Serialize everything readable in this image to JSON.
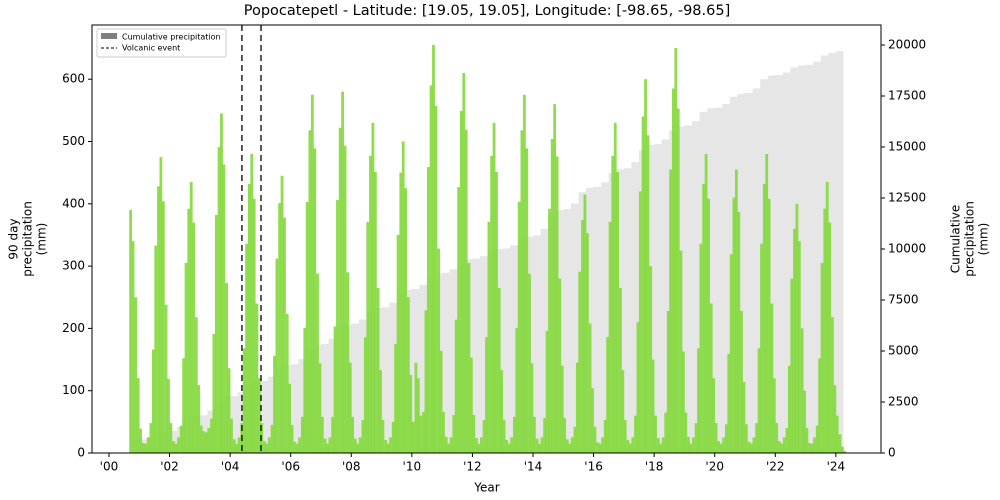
{
  "chart_data": {
    "type": "bar",
    "title": "Popocatepetl - Latitude: [19.05, 19.05], Longitude: [-98.65, -98.65]",
    "xlabel": "Year",
    "ylabel": [
      "90 day",
      "precipitation",
      "(mm)"
    ],
    "y2label": [
      "Cumulative",
      "precipitation",
      "(mm)"
    ],
    "xlim": [
      1999.44,
      2025.49
    ],
    "xticks": [
      {
        "value": 2000,
        "label": "'00"
      },
      {
        "value": 2002,
        "label": "'02"
      },
      {
        "value": 2004,
        "label": "'04"
      },
      {
        "value": 2006,
        "label": "'06"
      },
      {
        "value": 2008,
        "label": "'08"
      },
      {
        "value": 2010,
        "label": "'10"
      },
      {
        "value": 2012,
        "label": "'12"
      },
      {
        "value": 2014,
        "label": "'14"
      },
      {
        "value": 2016,
        "label": "'16"
      },
      {
        "value": 2018,
        "label": "'18"
      },
      {
        "value": 2020,
        "label": "'20"
      },
      {
        "value": 2022,
        "label": "'22"
      },
      {
        "value": 2024,
        "label": "'24"
      }
    ],
    "ylim": [
      0,
      687
    ],
    "yticks": [
      0,
      100,
      200,
      300,
      400,
      500,
      600
    ],
    "y2lim": [
      0,
      20980
    ],
    "y2ticks": [
      0,
      2500,
      5000,
      7500,
      10000,
      12500,
      15000,
      17500,
      20000
    ],
    "legend": "upper left",
    "events": [
      2004.39,
      2005.02
    ],
    "events_label": "Volcanic event",
    "events_color": "#000000",
    "x": [
      2000.71,
      2000.79,
      2000.88,
      2000.96,
      2001.04,
      2001.13,
      2001.21,
      2001.29,
      2001.38,
      2001.46,
      2001.54,
      2001.63,
      2001.71,
      2001.79,
      2001.88,
      2001.96,
      2002.04,
      2002.13,
      2002.21,
      2002.29,
      2002.38,
      2002.46,
      2002.54,
      2002.63,
      2002.71,
      2002.79,
      2002.88,
      2002.96,
      2003.04,
      2003.13,
      2003.21,
      2003.29,
      2003.38,
      2003.46,
      2003.54,
      2003.63,
      2003.71,
      2003.79,
      2003.88,
      2003.96,
      2004.04,
      2004.13,
      2004.21,
      2004.29,
      2004.38,
      2004.46,
      2004.54,
      2004.63,
      2004.71,
      2004.79,
      2004.88,
      2004.96,
      2005.04,
      2005.13,
      2005.21,
      2005.29,
      2005.38,
      2005.46,
      2005.54,
      2005.63,
      2005.71,
      2005.79,
      2005.88,
      2005.96,
      2006.04,
      2006.13,
      2006.21,
      2006.29,
      2006.38,
      2006.46,
      2006.54,
      2006.63,
      2006.71,
      2006.79,
      2006.88,
      2006.96,
      2007.04,
      2007.13,
      2007.21,
      2007.29,
      2007.38,
      2007.46,
      2007.54,
      2007.63,
      2007.71,
      2007.79,
      2007.88,
      2007.96,
      2008.04,
      2008.13,
      2008.21,
      2008.29,
      2008.38,
      2008.46,
      2008.54,
      2008.63,
      2008.71,
      2008.79,
      2008.88,
      2008.96,
      2009.04,
      2009.13,
      2009.21,
      2009.29,
      2009.38,
      2009.46,
      2009.54,
      2009.63,
      2009.71,
      2009.79,
      2009.88,
      2009.96,
      2010.04,
      2010.13,
      2010.21,
      2010.29,
      2010.38,
      2010.46,
      2010.54,
      2010.63,
      2010.71,
      2010.79,
      2010.88,
      2010.96,
      2011.04,
      2011.13,
      2011.21,
      2011.29,
      2011.38,
      2011.46,
      2011.54,
      2011.63,
      2011.71,
      2011.79,
      2011.88,
      2011.96,
      2012.04,
      2012.13,
      2012.21,
      2012.29,
      2012.38,
      2012.46,
      2012.54,
      2012.63,
      2012.71,
      2012.79,
      2012.88,
      2012.96,
      2013.04,
      2013.13,
      2013.21,
      2013.29,
      2013.38,
      2013.46,
      2013.54,
      2013.63,
      2013.71,
      2013.79,
      2013.88,
      2013.96,
      2014.04,
      2014.13,
      2014.21,
      2014.29,
      2014.38,
      2014.46,
      2014.54,
      2014.63,
      2014.71,
      2014.79,
      2014.88,
      2014.96,
      2015.04,
      2015.13,
      2015.21,
      2015.29,
      2015.38,
      2015.46,
      2015.54,
      2015.63,
      2015.71,
      2015.79,
      2015.88,
      2015.96,
      2016.04,
      2016.13,
      2016.21,
      2016.29,
      2016.38,
      2016.46,
      2016.54,
      2016.63,
      2016.71,
      2016.79,
      2016.88,
      2016.96,
      2017.04,
      2017.13,
      2017.21,
      2017.29,
      2017.38,
      2017.46,
      2017.54,
      2017.63,
      2017.71,
      2017.79,
      2017.88,
      2017.96,
      2018.04,
      2018.13,
      2018.21,
      2018.29,
      2018.38,
      2018.46,
      2018.54,
      2018.63,
      2018.71,
      2018.79,
      2018.88,
      2018.96,
      2019.04,
      2019.13,
      2019.21,
      2019.29,
      2019.38,
      2019.46,
      2019.54,
      2019.63,
      2019.71,
      2019.79,
      2019.88,
      2019.96,
      2020.04,
      2020.13,
      2020.21,
      2020.29,
      2020.38,
      2020.46,
      2020.54,
      2020.63,
      2020.71,
      2020.79,
      2020.88,
      2020.96,
      2021.04,
      2021.13,
      2021.21,
      2021.29,
      2021.38,
      2021.46,
      2021.54,
      2021.63,
      2021.71,
      2021.79,
      2021.88,
      2021.96,
      2022.04,
      2022.13,
      2022.21,
      2022.29,
      2022.38,
      2022.46,
      2022.54,
      2022.63,
      2022.71,
      2022.79,
      2022.88,
      2022.96,
      2023.04,
      2023.13,
      2023.21,
      2023.29,
      2023.38,
      2023.46,
      2023.54,
      2023.63,
      2023.71,
      2023.79,
      2023.88,
      2023.96,
      2024.04,
      2024.13,
      2024.21,
      2024.29
    ],
    "series": [
      {
        "color": "#84d83c",
        "values": [
          390,
          340,
          250,
          120,
          39,
          16,
          15,
          25,
          48,
          166,
          333,
          428,
          475,
          404,
          238,
          119,
          48,
          19,
          15,
          25,
          44,
          152,
          305,
          392,
          435,
          370,
          218,
          109,
          44,
          35,
          33,
          40,
          55,
          191,
          382,
          491,
          545,
          463,
          273,
          136,
          55,
          22,
          15,
          25,
          48,
          168,
          336,
          432,
          480,
          408,
          240,
          120,
          48,
          19,
          15,
          25,
          45,
          156,
          312,
          401,
          445,
          378,
          223,
          111,
          45,
          18,
          15,
          25,
          58,
          201,
          403,
          518,
          575,
          489,
          288,
          144,
          58,
          23,
          15,
          25,
          58,
          203,
          406,
          522,
          580,
          493,
          290,
          145,
          58,
          23,
          15,
          25,
          53,
          186,
          371,
          477,
          530,
          451,
          265,
          133,
          53,
          21,
          15,
          25,
          50,
          175,
          350,
          450,
          500,
          425,
          250,
          125,
          50,
          145,
          120,
          60,
          66,
          229,
          459,
          590,
          655,
          557,
          328,
          164,
          66,
          26,
          15,
          25,
          61,
          214,
          427,
          549,
          610,
          519,
          305,
          153,
          61,
          24,
          15,
          25,
          53,
          186,
          371,
          477,
          530,
          451,
          265,
          133,
          53,
          21,
          15,
          25,
          58,
          201,
          403,
          518,
          575,
          489,
          288,
          144,
          58,
          23,
          15,
          25,
          56,
          196,
          392,
          504,
          560,
          476,
          280,
          140,
          56,
          22,
          15,
          25,
          42,
          145,
          291,
          374,
          415,
          353,
          208,
          104,
          42,
          17,
          15,
          25,
          53,
          186,
          371,
          477,
          530,
          451,
          265,
          133,
          53,
          21,
          15,
          25,
          60,
          210,
          420,
          540,
          600,
          510,
          300,
          150,
          60,
          24,
          15,
          25,
          65,
          228,
          455,
          585,
          650,
          553,
          325,
          163,
          65,
          26,
          15,
          25,
          48,
          168,
          336,
          432,
          480,
          408,
          240,
          120,
          48,
          19,
          15,
          25,
          46,
          159,
          319,
          410,
          455,
          387,
          228,
          114,
          46,
          18,
          15,
          25,
          48,
          168,
          336,
          432,
          480,
          408,
          240,
          120,
          48,
          19,
          15,
          25,
          40,
          140,
          280,
          360,
          400,
          340,
          200,
          100,
          40,
          16,
          15,
          25,
          44,
          152,
          305,
          392,
          435,
          370,
          218,
          109,
          60,
          30,
          10,
          3
        ]
      },
      {
        "name": "Cumulative precipitation",
        "color": "#808080",
        "axis": "y2",
        "x": [
          2000.75,
          2001,
          2001.25,
          2001.5,
          2001.75,
          2002,
          2002.25,
          2002.5,
          2002.75,
          2003,
          2003.25,
          2003.5,
          2003.75,
          2004,
          2004.25,
          2004.5,
          2004.75,
          2005,
          2005.25,
          2005.5,
          2005.75,
          2006,
          2006.25,
          2006.5,
          2006.75,
          2007,
          2007.25,
          2007.5,
          2007.75,
          2008,
          2008.25,
          2008.5,
          2008.75,
          2009,
          2009.25,
          2009.5,
          2009.75,
          2010,
          2010.25,
          2010.5,
          2010.75,
          2011,
          2011.25,
          2011.5,
          2011.75,
          2012,
          2012.25,
          2012.5,
          2012.75,
          2013,
          2013.25,
          2013.5,
          2013.75,
          2014,
          2014.25,
          2014.5,
          2014.75,
          2015,
          2015.25,
          2015.5,
          2015.75,
          2016,
          2016.25,
          2016.5,
          2016.75,
          2017,
          2017.25,
          2017.5,
          2017.75,
          2018,
          2018.25,
          2018.5,
          2018.75,
          2019,
          2019.25,
          2019.5,
          2019.75,
          2020,
          2020.25,
          2020.5,
          2020.75,
          2021,
          2021.25,
          2021.5,
          2021.75,
          2022,
          2022.25,
          2022.5,
          2022.75,
          2023,
          2023.25,
          2023.5,
          2023.75,
          2024,
          2024.25
        ],
        "values": [
          0,
          650,
          670,
          770,
          970,
          1050,
          1088,
          1275,
          1650,
          1800,
          1848,
          2085,
          2560,
          2750,
          2788,
          2975,
          3350,
          3500,
          3540,
          3740,
          4140,
          4300,
          4350,
          4600,
          5100,
          5300,
          5350,
          5600,
          6100,
          6300,
          6340,
          6540,
          6940,
          7100,
          7145,
          7370,
          7820,
          8000,
          8040,
          8240,
          8640,
          8800,
          8835,
          9010,
          9360,
          9500,
          9525,
          9650,
          9900,
          10000,
          10030,
          10180,
          10480,
          10600,
          10665,
          10990,
          11640,
          11900,
          11955,
          12230,
          12780,
          13000,
          13045,
          13270,
          13720,
          13900,
          13960,
          14260,
          14860,
          15100,
          15145,
          15370,
          15820,
          16000,
          16045,
          16270,
          16720,
          16900,
          16935,
          17110,
          17460,
          17600,
          17645,
          17870,
          18320,
          18500,
          18525,
          18650,
          18900,
          19000,
          19030,
          19180,
          19480,
          19600,
          19700
        ]
      }
    ]
  }
}
